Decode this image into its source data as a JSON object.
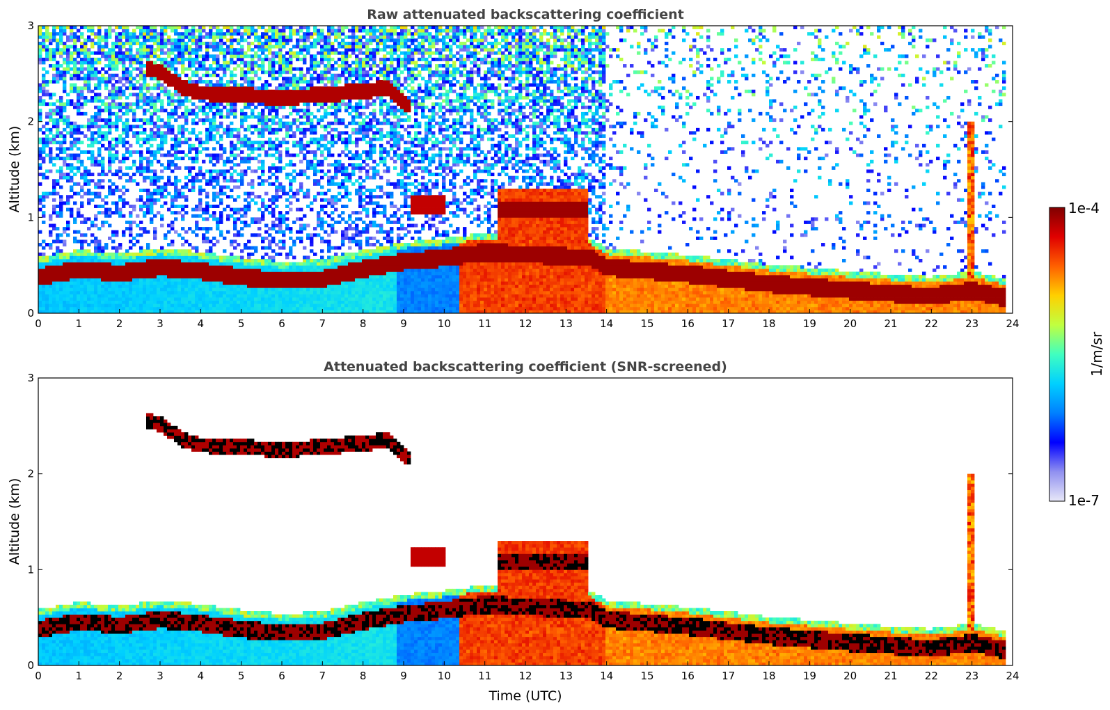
{
  "chart_data": [
    {
      "type": "heatmap",
      "title": "Raw attenuated backscattering coefficient",
      "xlabel": "",
      "ylabel": "Altitude (km)",
      "xlim": [
        0,
        24
      ],
      "ylim": [
        0,
        3
      ],
      "xticks": [
        "0",
        "1",
        "2",
        "3",
        "4",
        "5",
        "6",
        "7",
        "8",
        "9",
        "10",
        "11",
        "12",
        "13",
        "14",
        "15",
        "16",
        "17",
        "18",
        "19",
        "20",
        "21",
        "22",
        "23",
        "24"
      ],
      "yticks": [
        "0",
        "1",
        "2",
        "3"
      ],
      "screened": false
    },
    {
      "type": "heatmap",
      "title": "Attenuated backscattering coefficient (SNR-screened)",
      "xlabel": "Time (UTC)",
      "ylabel": "Altitude (km)",
      "xlim": [
        0,
        24
      ],
      "ylim": [
        0,
        3
      ],
      "xticks": [
        "0",
        "1",
        "2",
        "3",
        "4",
        "5",
        "6",
        "7",
        "8",
        "9",
        "10",
        "11",
        "12",
        "13",
        "14",
        "15",
        "16",
        "17",
        "18",
        "19",
        "20",
        "21",
        "22",
        "23",
        "24"
      ],
      "yticks": [
        "0",
        "1",
        "2",
        "3"
      ],
      "screened": true
    }
  ],
  "colorbar": {
    "label": "1/m/sr",
    "min_label": "1e-7",
    "max_label": "1e-4",
    "colors": [
      "#e8e8f8",
      "#9090f0",
      "#0000ff",
      "#0080ff",
      "#00d0ff",
      "#40ffc0",
      "#c0ff40",
      "#ffd000",
      "#ff6000",
      "#e00000",
      "#800000"
    ]
  },
  "features": {
    "boundary_layer_top_km": [
      [
        0,
        0.52
      ],
      [
        1,
        0.6
      ],
      [
        2,
        0.56
      ],
      [
        3,
        0.62
      ],
      [
        4,
        0.58
      ],
      [
        5,
        0.52
      ],
      [
        6,
        0.48
      ],
      [
        7,
        0.5
      ],
      [
        8,
        0.6
      ],
      [
        9,
        0.68
      ],
      [
        10,
        0.72
      ],
      [
        11,
        0.78
      ],
      [
        13.6,
        0.72
      ],
      [
        14,
        0.62
      ],
      [
        16,
        0.55
      ],
      [
        18,
        0.45
      ],
      [
        20,
        0.38
      ],
      [
        22,
        0.32
      ],
      [
        23,
        0.38
      ],
      [
        23.8,
        0.3
      ]
    ],
    "elevated_cloud_km": [
      [
        2.7,
        2.55
      ],
      [
        3,
        2.52
      ],
      [
        3.6,
        2.35
      ],
      [
        4,
        2.3
      ],
      [
        5,
        2.28
      ],
      [
        6,
        2.25
      ],
      [
        7,
        2.28
      ],
      [
        8,
        2.32
      ],
      [
        8.6,
        2.35
      ],
      [
        9,
        2.2
      ],
      [
        9.2,
        2.15
      ]
    ],
    "thick_cloud": {
      "t_start": 11.3,
      "t_end": 13.5,
      "top_km": 1.3,
      "base_km": 1.08
    },
    "low_cloud": {
      "t_start": 9.2,
      "t_end": 10.0,
      "alt_km": 1.15
    },
    "spike": {
      "t": 23.0,
      "top_km": 2.0
    }
  }
}
